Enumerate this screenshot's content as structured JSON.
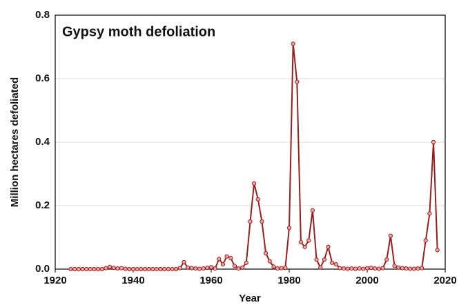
{
  "chart_data": {
    "type": "line",
    "title": "Gypsy moth defoliation",
    "xlabel": "Year",
    "ylabel": "Million hectares defoliated",
    "x": [
      1924,
      1925,
      1926,
      1927,
      1928,
      1929,
      1930,
      1931,
      1932,
      1933,
      1934,
      1935,
      1936,
      1937,
      1938,
      1939,
      1940,
      1941,
      1942,
      1943,
      1944,
      1945,
      1946,
      1947,
      1948,
      1949,
      1950,
      1951,
      1952,
      1953,
      1954,
      1955,
      1956,
      1957,
      1958,
      1959,
      1960,
      1961,
      1962,
      1963,
      1964,
      1965,
      1966,
      1967,
      1968,
      1969,
      1970,
      1971,
      1972,
      1973,
      1974,
      1975,
      1976,
      1977,
      1978,
      1979,
      1980,
      1981,
      1982,
      1983,
      1984,
      1985,
      1986,
      1987,
      1988,
      1989,
      1990,
      1991,
      1992,
      1993,
      1994,
      1995,
      1996,
      1997,
      1998,
      1999,
      2000,
      2001,
      2002,
      2003,
      2004,
      2005,
      2006,
      2007,
      2008,
      2009,
      2010,
      2011,
      2012,
      2013,
      2014,
      2015,
      2016,
      2017,
      2018
    ],
    "values": [
      0,
      0,
      0,
      0,
      0,
      0,
      0,
      0,
      0,
      0.003,
      0.007,
      0.004,
      0.002,
      0.003,
      0.001,
      0,
      0,
      0,
      0,
      0,
      0,
      0,
      0,
      0,
      0,
      0,
      0,
      0,
      0.003,
      0.022,
      0.005,
      0.003,
      0.002,
      0.001,
      0.002,
      0.004,
      0.006,
      0.002,
      0.032,
      0.015,
      0.04,
      0.035,
      0.01,
      0.002,
      0.005,
      0.02,
      0.15,
      0.27,
      0.22,
      0.15,
      0.05,
      0.025,
      0.008,
      0.002,
      0.003,
      0.004,
      0.13,
      0.71,
      0.59,
      0.085,
      0.07,
      0.09,
      0.185,
      0.03,
      0.005,
      0.03,
      0.07,
      0.02,
      0.015,
      0.003,
      0.002,
      0.001,
      0.002,
      0.001,
      0.002,
      0.001,
      0.003,
      0.004,
      0.002,
      0.001,
      0.003,
      0.03,
      0.105,
      0.01,
      0.005,
      0.003,
      0.002,
      0.001,
      0.001,
      0.002,
      0.003,
      0.09,
      0.175,
      0.4,
      0.06
    ],
    "color": "#9b1c1c",
    "marker_fill": "#f4a6a6",
    "xlim": [
      1920,
      2020
    ],
    "xticks": [
      1920,
      1940,
      1960,
      1980,
      2000,
      2020
    ],
    "ylim": [
      0,
      0.8
    ],
    "yticks": [
      {
        "value": 0,
        "label": "0.0"
      },
      0.2,
      0.4,
      0.6,
      0.8
    ],
    "grid": true
  }
}
